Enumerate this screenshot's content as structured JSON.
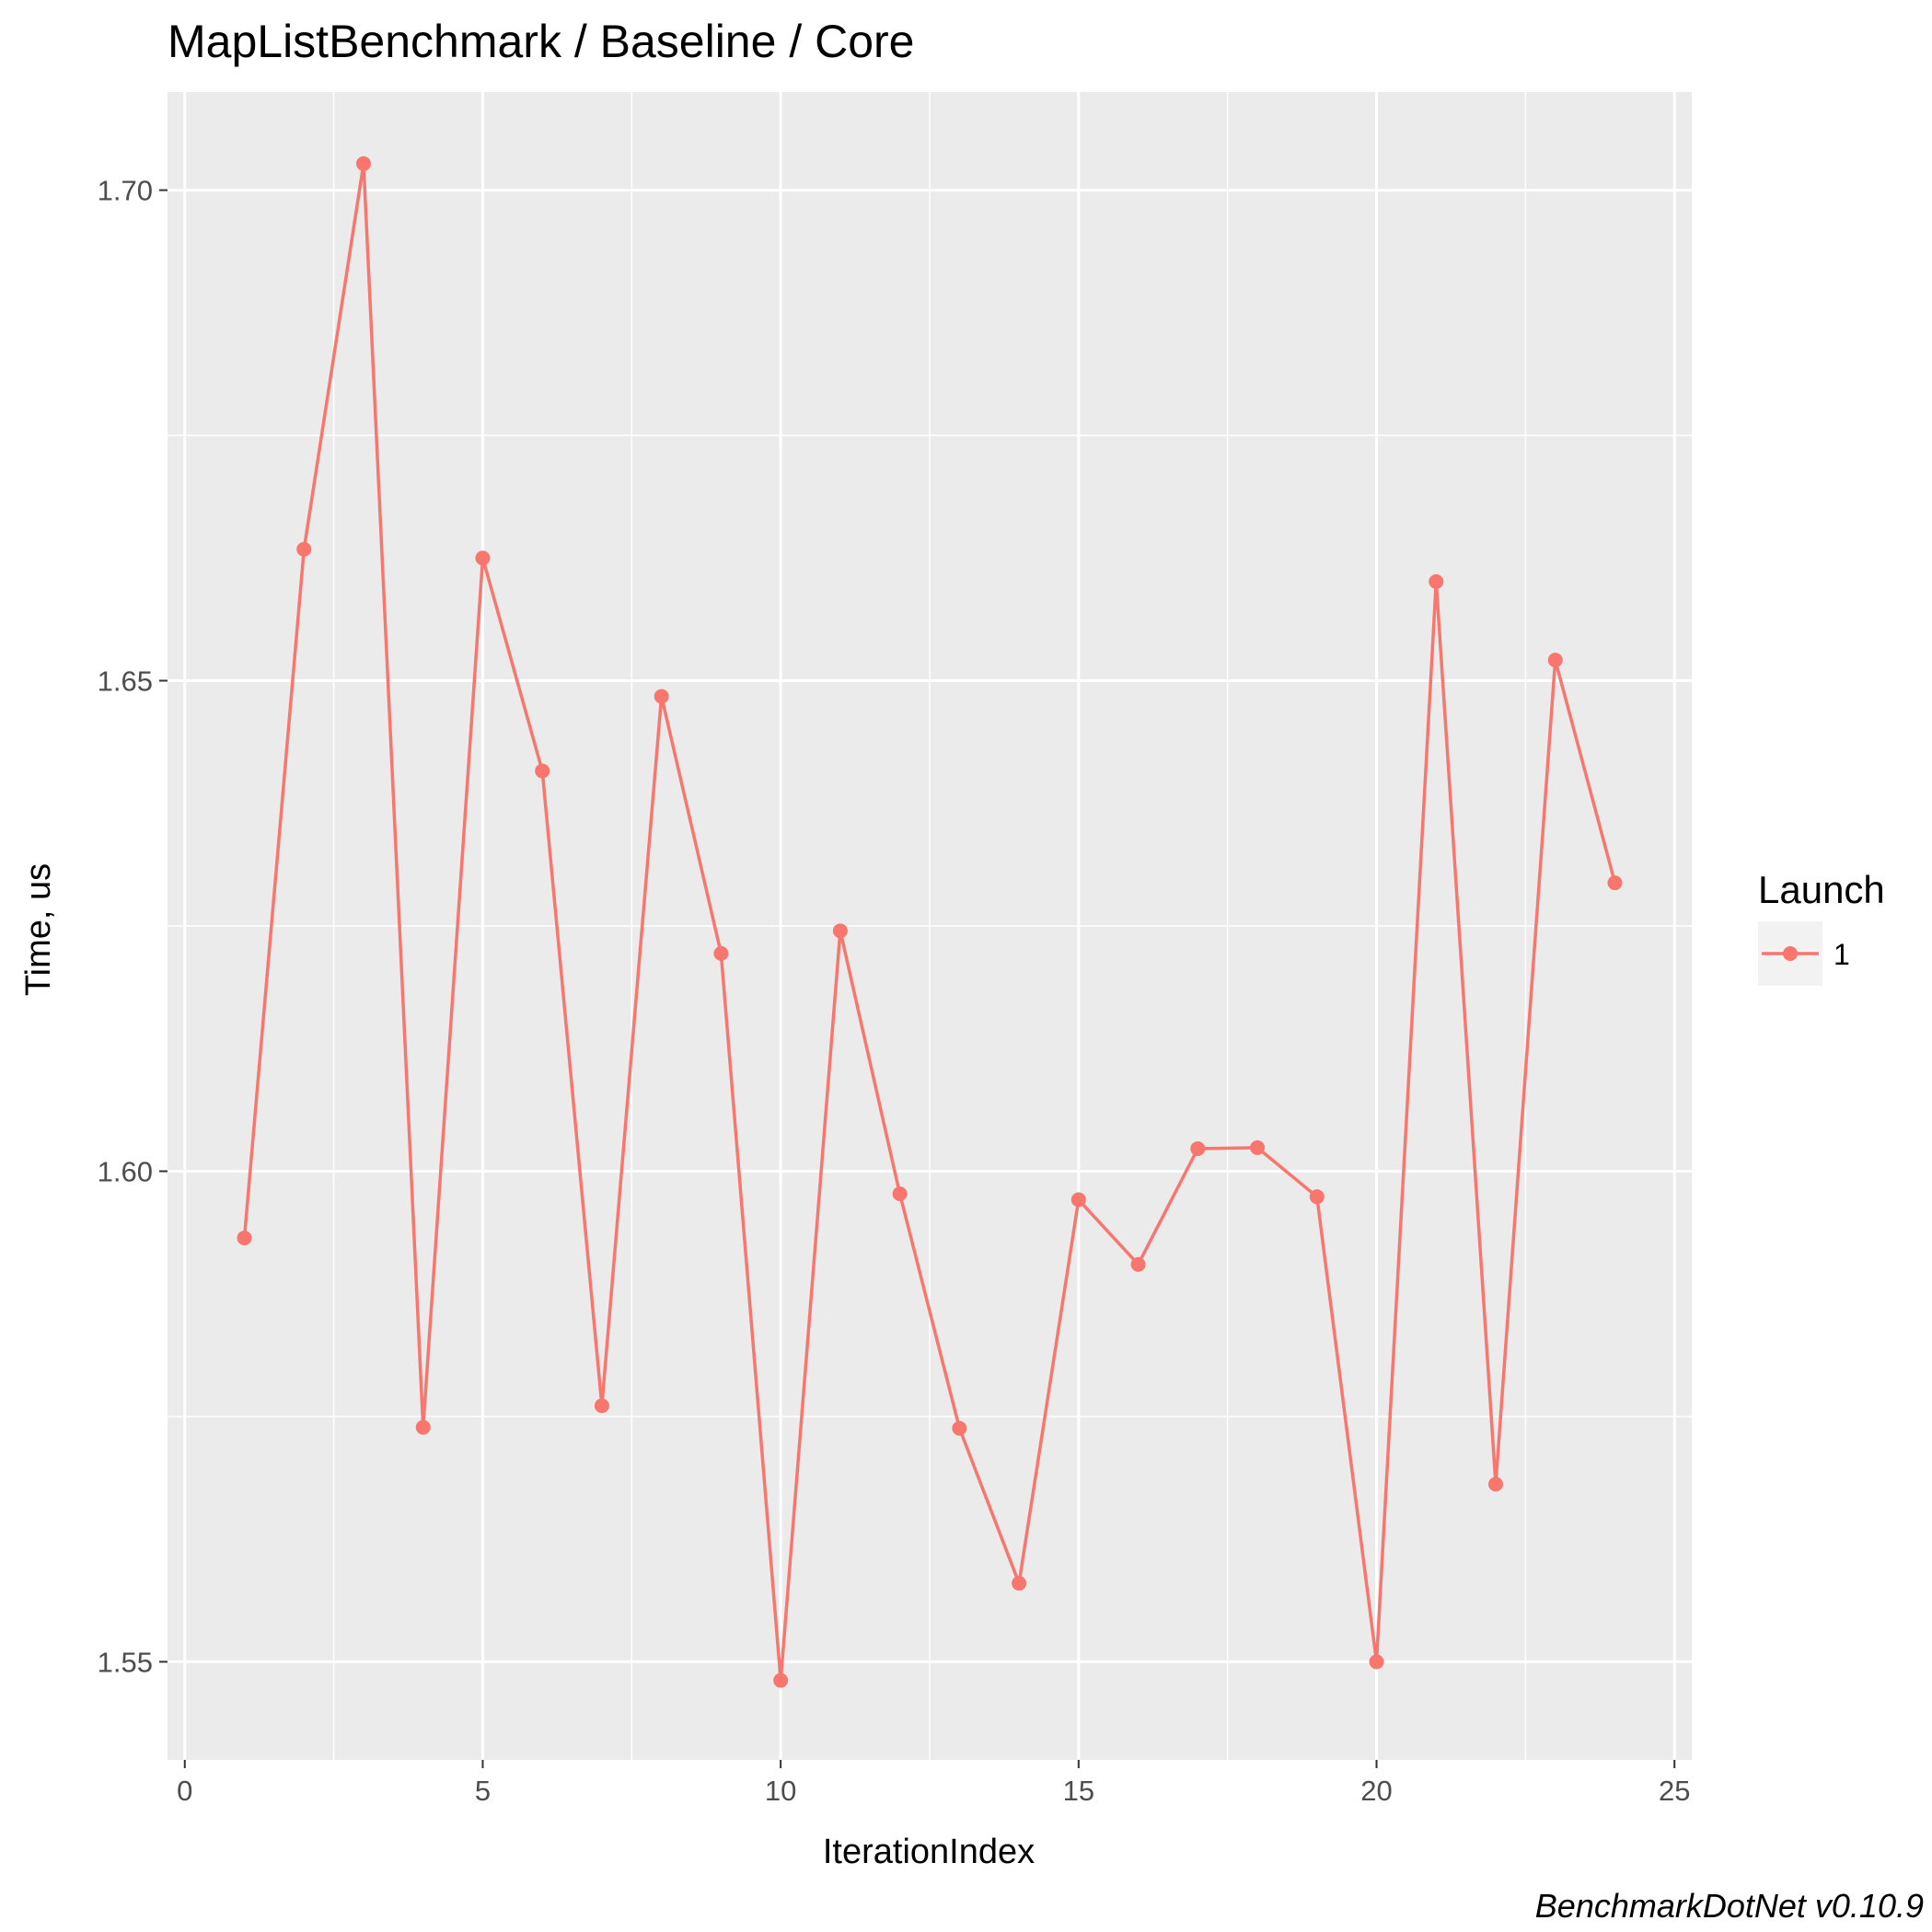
{
  "chart_data": {
    "type": "line",
    "title": "MapListBenchmark / Baseline / Core",
    "xlabel": "IterationIndex",
    "ylabel": "Time, us",
    "caption": "BenchmarkDotNet v0.10.9",
    "xlim": [
      0,
      25
    ],
    "ylim": [
      1.54,
      1.71
    ],
    "x_ticks": [
      0,
      5,
      10,
      15,
      20,
      25
    ],
    "x_tick_labels": [
      "0",
      "5",
      "10",
      "15",
      "20",
      "25"
    ],
    "y_ticks": [
      1.55,
      1.6,
      1.65,
      1.7
    ],
    "y_tick_labels": [
      "1.55",
      "1.60",
      "1.65",
      "1.70"
    ],
    "grid": true,
    "legend": {
      "title": "Launch",
      "placement": "right"
    },
    "series": [
      {
        "name": "1",
        "color": "#F8766D",
        "x": [
          1,
          2,
          3,
          4,
          5,
          6,
          7,
          8,
          9,
          10,
          11,
          12,
          13,
          14,
          15,
          16,
          17,
          18,
          19,
          20,
          21,
          22,
          23,
          24
        ],
        "y": [
          1.5932,
          1.6634,
          1.7027,
          1.5739,
          1.6625,
          1.6408,
          1.5761,
          1.6484,
          1.6222,
          1.5481,
          1.6245,
          1.5977,
          1.5738,
          1.558,
          1.5971,
          1.5905,
          1.6023,
          1.6024,
          1.5974,
          1.55,
          1.6601,
          1.5681,
          1.6521,
          1.6294
        ]
      }
    ]
  }
}
